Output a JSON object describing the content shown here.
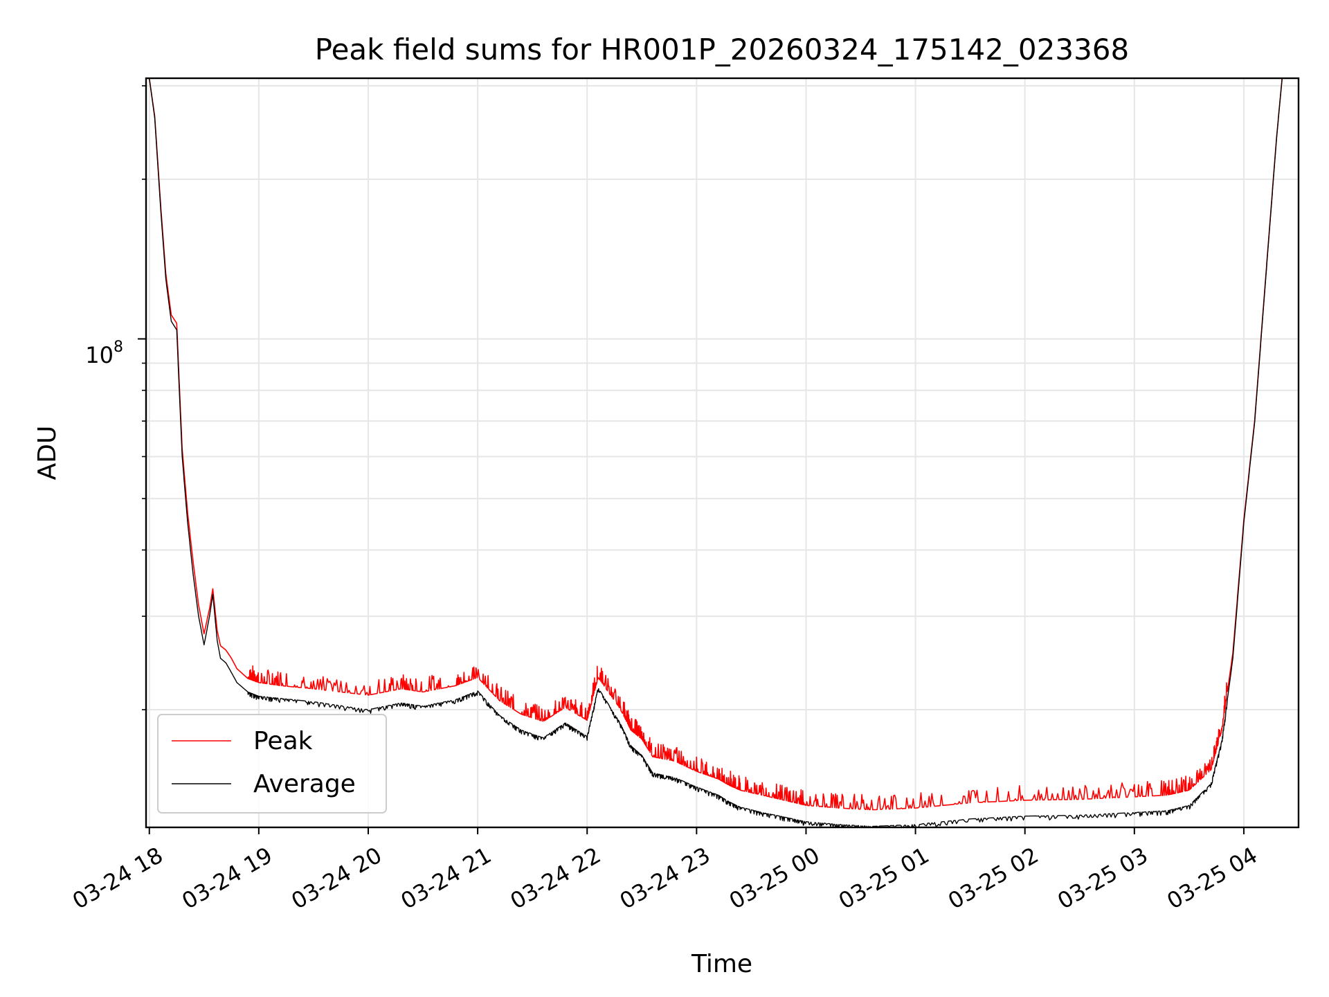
{
  "chart_data": {
    "type": "line",
    "title": "Peak field sums for HR001P_20260324_175142_023368",
    "xlabel": "Time",
    "ylabel": "ADU",
    "yscale": "log",
    "grid": true,
    "legend_position": "lower-left",
    "x_unit": "hours since 03-24 18:00",
    "xlim": [
      -0.03,
      10.5
    ],
    "ylim": [
      12000000,
      310000000
    ],
    "x_ticks": [
      0,
      1,
      2,
      3,
      4,
      5,
      6,
      7,
      8,
      9,
      10
    ],
    "x_tick_labels": [
      "03-24 18",
      "03-24 19",
      "03-24 20",
      "03-24 21",
      "03-24 22",
      "03-24 23",
      "03-25 00",
      "03-25 01",
      "03-25 02",
      "03-25 03",
      "03-25 04"
    ],
    "y_major_ticks": [
      100000000
    ],
    "y_major_tick_labels": [
      "10",
      "8"
    ],
    "y_minor_ticks": [
      20000000,
      30000000,
      40000000,
      50000000,
      60000000,
      70000000,
      80000000,
      90000000,
      200000000,
      300000000
    ],
    "series": [
      {
        "name": "Average",
        "color": "#000000",
        "x": [
          0.0,
          0.05,
          0.1,
          0.15,
          0.2,
          0.25,
          0.3,
          0.35,
          0.4,
          0.45,
          0.5,
          0.55,
          0.58,
          0.62,
          0.65,
          0.7,
          0.75,
          0.8,
          0.9,
          1.0,
          1.2,
          1.5,
          2.0,
          2.3,
          2.5,
          2.8,
          3.0,
          3.2,
          3.4,
          3.6,
          3.8,
          4.0,
          4.1,
          4.3,
          4.4,
          4.5,
          4.6,
          4.8,
          5.0,
          5.2,
          5.3,
          5.4,
          5.6,
          5.8,
          6.0,
          6.3,
          6.6,
          7.0,
          7.5,
          8.0,
          8.5,
          9.0,
          9.3,
          9.5,
          9.7,
          9.8,
          9.9,
          10.0,
          10.1,
          10.2,
          10.3,
          10.35
        ],
        "y": [
          310000000,
          260000000,
          180000000,
          130000000,
          108000000,
          104000000,
          60000000,
          45000000,
          36000000,
          30000000,
          26500000,
          30000000,
          33000000,
          27000000,
          25000000,
          24500000,
          23500000,
          22500000,
          21600000,
          21200000,
          21000000,
          20700000,
          20000000,
          20600000,
          20300000,
          20900000,
          21700000,
          19500000,
          18300000,
          17700000,
          18900000,
          17800000,
          22000000,
          18900000,
          17100000,
          16400000,
          15200000,
          14900000,
          14300000,
          13800000,
          13400000,
          13100000,
          12800000,
          12550000,
          12300000,
          12150000,
          12050000,
          12150000,
          12450000,
          12600000,
          12650000,
          12800000,
          12900000,
          13200000,
          14500000,
          17500000,
          25000000,
          45000000,
          70000000,
          130000000,
          240000000,
          310000000
        ]
      },
      {
        "name": "Peak",
        "color": "#ff0000",
        "x": [
          0.0,
          0.05,
          0.1,
          0.15,
          0.2,
          0.25,
          0.3,
          0.35,
          0.4,
          0.45,
          0.5,
          0.55,
          0.58,
          0.62,
          0.65,
          0.7,
          0.75,
          0.8,
          0.9,
          1.0,
          1.2,
          1.5,
          2.0,
          2.3,
          2.5,
          2.8,
          3.0,
          3.2,
          3.4,
          3.6,
          3.8,
          4.0,
          4.1,
          4.3,
          4.4,
          4.5,
          4.6,
          4.8,
          5.0,
          5.2,
          5.3,
          5.4,
          5.6,
          5.8,
          6.0,
          6.3,
          6.6,
          7.0,
          7.5,
          8.0,
          8.5,
          9.0,
          9.3,
          9.5,
          9.7,
          9.8,
          9.9,
          10.0,
          10.1,
          10.2,
          10.3,
          10.35
        ],
        "y": [
          310000000,
          262000000,
          183000000,
          133000000,
          111000000,
          107000000,
          62000000,
          47000000,
          38000000,
          31500000,
          27800000,
          31000000,
          33800000,
          28200000,
          26400000,
          25900000,
          25000000,
          23900000,
          22900000,
          22500000,
          22200000,
          21900000,
          21300000,
          21900000,
          21600000,
          22200000,
          23000000,
          20800000,
          19600000,
          19000000,
          20200000,
          19100000,
          23000000,
          20100000,
          18300000,
          17600000,
          16300000,
          16000000,
          15300000,
          14800000,
          14400000,
          14100000,
          13800000,
          13500000,
          13200000,
          13050000,
          12950000,
          13050000,
          13350000,
          13500000,
          13550000,
          13700000,
          13800000,
          14100000,
          15400000,
          18300000,
          25600000,
          45500000,
          70500000,
          131000000,
          241000000,
          310000000
        ]
      }
    ]
  }
}
